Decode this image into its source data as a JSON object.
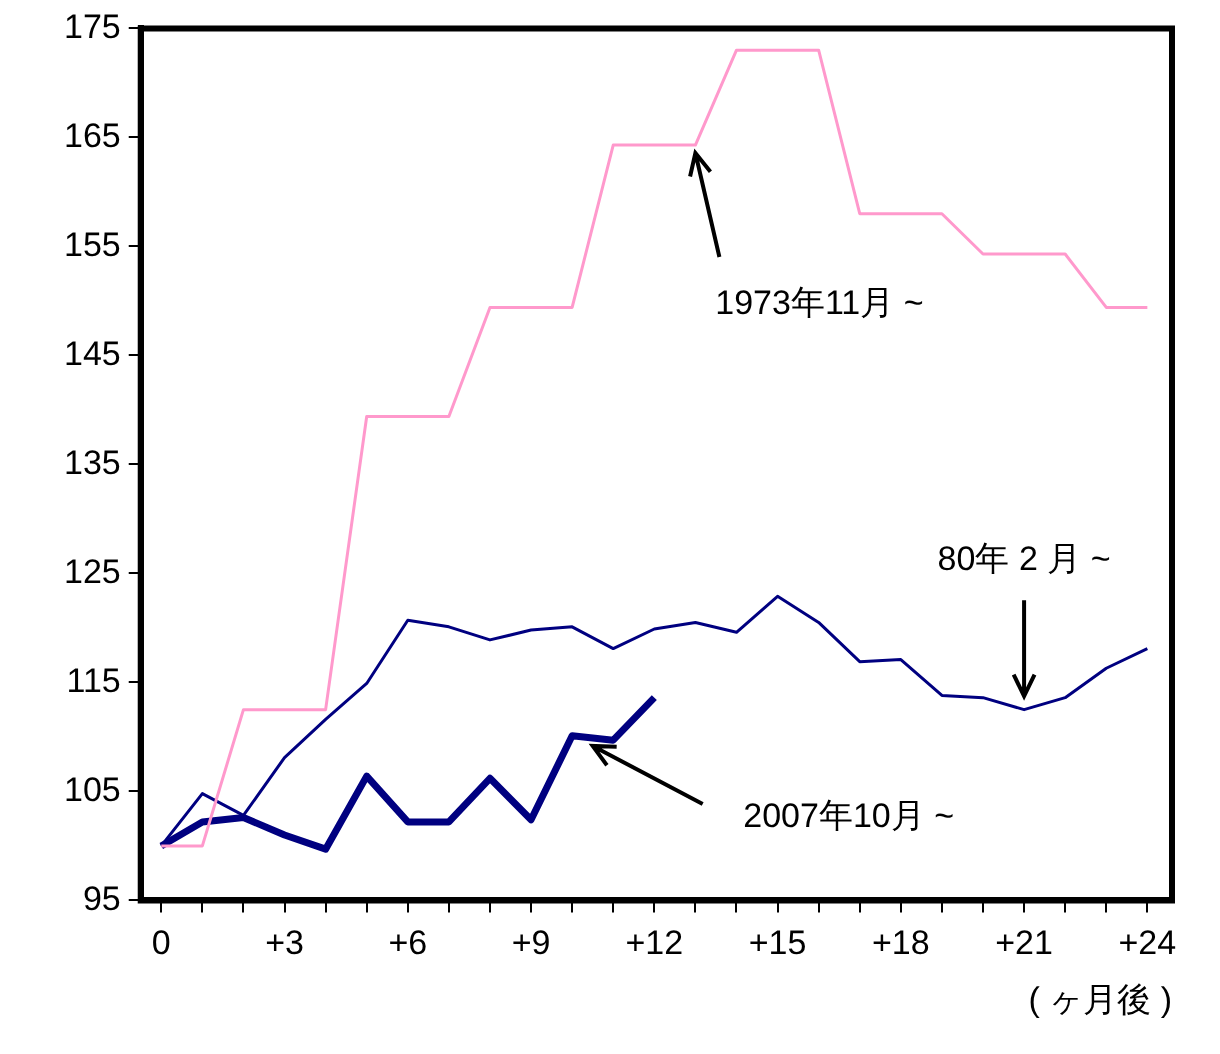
{
  "chart_data": {
    "type": "line",
    "x": [
      0,
      1,
      2,
      3,
      4,
      5,
      6,
      7,
      8,
      9,
      10,
      11,
      12,
      13,
      14,
      15,
      16,
      17,
      18,
      19,
      20,
      21,
      22,
      23,
      24
    ],
    "xlim": [
      -0.5,
      24.6
    ],
    "xticks": [
      0,
      {
        "value": 1,
        "label": null
      },
      {
        "value": 2,
        "label": null
      },
      {
        "value": 3,
        "label": "+3"
      },
      {
        "value": 4,
        "label": null
      },
      {
        "value": 5,
        "label": null
      },
      {
        "value": 6,
        "label": "+6"
      },
      {
        "value": 7,
        "label": null
      },
      {
        "value": 8,
        "label": null
      },
      {
        "value": 9,
        "label": "+9"
      },
      {
        "value": 10,
        "label": null
      },
      {
        "value": 11,
        "label": null
      },
      {
        "value": 12,
        "label": "+12"
      },
      {
        "value": 13,
        "label": null
      },
      {
        "value": 14,
        "label": null
      },
      {
        "value": 15,
        "label": "+15"
      },
      {
        "value": 16,
        "label": null
      },
      {
        "value": 17,
        "label": null
      },
      {
        "value": 18,
        "label": "+18"
      },
      {
        "value": 19,
        "label": null
      },
      {
        "value": 20,
        "label": null
      },
      {
        "value": 21,
        "label": "+21"
      },
      {
        "value": 22,
        "label": null
      },
      {
        "value": 23,
        "label": null
      },
      {
        "value": 24,
        "label": "+24"
      }
    ],
    "ylim": [
      95,
      175
    ],
    "yticks": [
      95,
      105,
      115,
      125,
      135,
      145,
      155,
      165,
      175
    ],
    "xlabel": "( ヶ月後 )",
    "grid": false,
    "legend": false,
    "marker": "none",
    "series": [
      {
        "color": "#ff99cc",
        "values": [
          100,
          100,
          112.5,
          112.5,
          112.5,
          139.4,
          139.4,
          139.4,
          149.4,
          149.4,
          149.4,
          164.3,
          164.3,
          164.3,
          173,
          173,
          173,
          158,
          158,
          158,
          154.3,
          154.3,
          154.3,
          149.4,
          149.4
        ]
      },
      {
        "color": "#000080",
        "values": [
          100,
          104.8,
          102.8,
          108.1,
          111.6,
          114.9,
          120.7,
          120.1,
          118.9,
          119.8,
          120.1,
          118.1,
          119.9,
          120.5,
          119.6,
          122.9,
          120.5,
          116.9,
          117.1,
          113.8,
          113.6,
          112.5,
          113.6,
          116.3,
          118.1
        ]
      },
      {
        "color": "#000080",
        "x": [
          0,
          1,
          2,
          3,
          4,
          5,
          6,
          7,
          8,
          9,
          10,
          11,
          12
        ],
        "values": [
          100,
          102.2,
          102.6,
          101,
          99.7,
          106.4,
          102.2,
          102.2,
          106.2,
          102.4,
          110.1,
          109.7,
          113.6
        ]
      }
    ],
    "annotations": [
      {
        "text": "1973年11月 ~",
        "x": 13,
        "y": 164.3
      },
      {
        "text": "80年 2 月 ~",
        "x": 21,
        "y": 113
      },
      {
        "text": "2007年10月 ~",
        "x": 10.5,
        "y": 109.9
      }
    ]
  }
}
